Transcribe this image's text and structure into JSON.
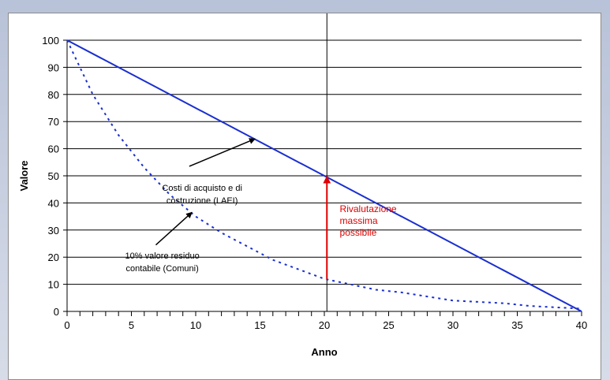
{
  "chart_data": {
    "type": "line",
    "title": "",
    "xlabel": "Anno",
    "ylabel": "Valore",
    "xlim": [
      0,
      40
    ],
    "ylim": [
      0,
      100
    ],
    "xticks": [
      0,
      5,
      10,
      15,
      20,
      25,
      30,
      35,
      40
    ],
    "yticks": [
      0,
      10,
      20,
      30,
      40,
      50,
      60,
      70,
      80,
      90,
      100
    ],
    "grid": "horizontal",
    "vline_x": 20.2,
    "series": [
      {
        "name": "Costi di acquisto e di costruzione (LAEI)",
        "style": "solid",
        "color": "#1a2fd0",
        "x": [
          0,
          40
        ],
        "y": [
          100,
          0
        ]
      },
      {
        "name": "10% valore residuo contabile (Comuni)",
        "style": "dotted",
        "color": "#1a2fd0",
        "x": [
          0,
          2,
          4,
          6,
          8,
          10,
          12,
          14,
          16,
          18,
          20,
          22,
          24,
          26,
          28,
          30,
          32,
          34,
          36,
          38,
          40
        ],
        "y": [
          100,
          80,
          65,
          53,
          43,
          35,
          29,
          24,
          19,
          15.5,
          12,
          10,
          8,
          7,
          5.5,
          4,
          3.5,
          3,
          2,
          1.5,
          1
        ]
      }
    ],
    "annotations": [
      {
        "id": "laei",
        "lines": [
          "Costi di acquisto e di",
          "costruzione (LAEI)"
        ],
        "color": "#000000"
      },
      {
        "id": "comuni",
        "lines": [
          "10% valore residuo",
          "contabile (Comuni)"
        ],
        "color": "#000000"
      },
      {
        "id": "riv",
        "lines": [
          "Rivalutazione",
          "massima",
          "possibile"
        ],
        "color": "#e00000"
      }
    ],
    "arrow_color": "#e00000"
  }
}
